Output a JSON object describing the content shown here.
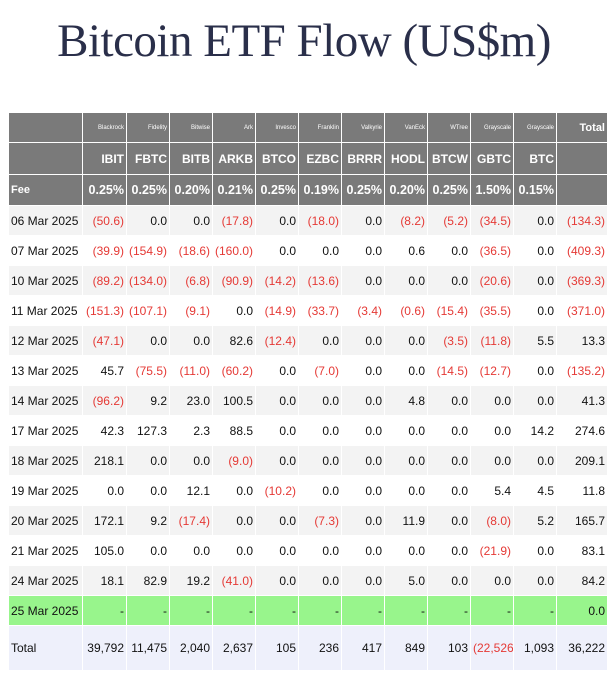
{
  "title": "Bitcoin ETF Flow (US$m)",
  "issuers": [
    "Blackrock",
    "Fidelity",
    "Bitwise",
    "Ark",
    "Invesco",
    "Franklin",
    "Valkyrie",
    "VanEck",
    "WTree",
    "Grayscale",
    "Grayscale"
  ],
  "total_label": "Total",
  "tickers": [
    "IBIT",
    "FBTC",
    "BITB",
    "ARKB",
    "BTCO",
    "EZBC",
    "BRRR",
    "HODL",
    "BTCW",
    "GBTC",
    "BTC"
  ],
  "fee_label": "Fee",
  "fees": [
    "0.25%",
    "0.25%",
    "0.20%",
    "0.21%",
    "0.25%",
    "0.19%",
    "0.25%",
    "0.20%",
    "0.25%",
    "1.50%",
    "0.15%"
  ],
  "rows": [
    {
      "date": "06 Mar 2025",
      "cells": [
        "(50.6)",
        "0.0",
        "0.0",
        "(17.8)",
        "0.0",
        "(18.0)",
        "0.0",
        "(8.2)",
        "(5.2)",
        "(34.5)",
        "0.0",
        "(134.3)"
      ]
    },
    {
      "date": "07 Mar 2025",
      "cells": [
        "(39.9)",
        "(154.9)",
        "(18.6)",
        "(160.0)",
        "0.0",
        "0.0",
        "0.0",
        "0.6",
        "0.0",
        "(36.5)",
        "0.0",
        "(409.3)"
      ]
    },
    {
      "date": "10 Mar 2025",
      "cells": [
        "(89.2)",
        "(134.0)",
        "(6.8)",
        "(90.9)",
        "(14.2)",
        "(13.6)",
        "0.0",
        "0.0",
        "0.0",
        "(20.6)",
        "0.0",
        "(369.3)"
      ]
    },
    {
      "date": "11 Mar 2025",
      "cells": [
        "(151.3)",
        "(107.1)",
        "(9.1)",
        "0.0",
        "(14.9)",
        "(33.7)",
        "(3.4)",
        "(0.6)",
        "(15.4)",
        "(35.5)",
        "0.0",
        "(371.0)"
      ]
    },
    {
      "date": "12 Mar 2025",
      "cells": [
        "(47.1)",
        "0.0",
        "0.0",
        "82.6",
        "(12.4)",
        "0.0",
        "0.0",
        "0.0",
        "(3.5)",
        "(11.8)",
        "5.5",
        "13.3"
      ]
    },
    {
      "date": "13 Mar 2025",
      "cells": [
        "45.7",
        "(75.5)",
        "(11.0)",
        "(60.2)",
        "0.0",
        "(7.0)",
        "0.0",
        "0.0",
        "(14.5)",
        "(12.7)",
        "0.0",
        "(135.2)"
      ]
    },
    {
      "date": "14 Mar 2025",
      "cells": [
        "(96.2)",
        "9.2",
        "23.0",
        "100.5",
        "0.0",
        "0.0",
        "0.0",
        "4.8",
        "0.0",
        "0.0",
        "0.0",
        "41.3"
      ]
    },
    {
      "date": "17 Mar 2025",
      "cells": [
        "42.3",
        "127.3",
        "2.3",
        "88.5",
        "0.0",
        "0.0",
        "0.0",
        "0.0",
        "0.0",
        "0.0",
        "14.2",
        "274.6"
      ]
    },
    {
      "date": "18 Mar 2025",
      "cells": [
        "218.1",
        "0.0",
        "0.0",
        "(9.0)",
        "0.0",
        "0.0",
        "0.0",
        "0.0",
        "0.0",
        "0.0",
        "0.0",
        "209.1"
      ]
    },
    {
      "date": "19 Mar 2025",
      "cells": [
        "0.0",
        "0.0",
        "12.1",
        "0.0",
        "(10.2)",
        "0.0",
        "0.0",
        "0.0",
        "0.0",
        "5.4",
        "4.5",
        "11.8"
      ]
    },
    {
      "date": "20 Mar 2025",
      "cells": [
        "172.1",
        "9.2",
        "(17.4)",
        "0.0",
        "0.0",
        "(7.3)",
        "0.0",
        "11.9",
        "0.0",
        "(8.0)",
        "5.2",
        "165.7"
      ]
    },
    {
      "date": "21 Mar 2025",
      "cells": [
        "105.0",
        "0.0",
        "0.0",
        "0.0",
        "0.0",
        "0.0",
        "0.0",
        "0.0",
        "0.0",
        "(21.9)",
        "0.0",
        "83.1"
      ]
    },
    {
      "date": "24 Mar 2025",
      "cells": [
        "18.1",
        "82.9",
        "19.2",
        "(41.0)",
        "0.0",
        "0.0",
        "0.0",
        "5.0",
        "0.0",
        "0.0",
        "0.0",
        "84.2"
      ]
    },
    {
      "date": "25 Mar 2025",
      "cells": [
        "-",
        "-",
        "-",
        "-",
        "-",
        "-",
        "-",
        "-",
        "-",
        "-",
        "-",
        "0.0"
      ]
    }
  ],
  "highlight_row_date": "25 Mar 2025",
  "totals": {
    "label": "Total",
    "cells": [
      "39,792",
      "11,475",
      "2,040",
      "2,637",
      "105",
      "236",
      "417",
      "849",
      "103",
      "(22,526)",
      "1,093",
      "36,222"
    ]
  },
  "colors": {
    "header_bg": "#7a7a7a",
    "negative": "#e53935",
    "highlight": "#98f58c",
    "total_bg": "#eef0fb",
    "title": "#2a2f4a"
  }
}
